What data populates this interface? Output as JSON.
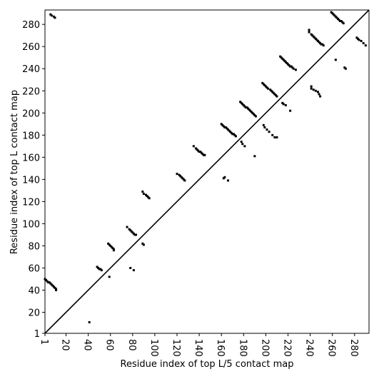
{
  "chart_data": {
    "type": "scatter",
    "xlabel": "Residue index of top L/5 contact map",
    "ylabel": "Residue index of top L contact map",
    "xlim": [
      1,
      293
    ],
    "ylim": [
      1,
      293
    ],
    "xticks": [
      1,
      20,
      40,
      60,
      80,
      100,
      120,
      140,
      160,
      180,
      200,
      220,
      240,
      260,
      280
    ],
    "yticks": [
      1,
      20,
      40,
      60,
      80,
      100,
      120,
      140,
      160,
      180,
      200,
      220,
      240,
      260,
      280
    ],
    "diagonal": true,
    "series": [
      {
        "color": "#000000",
        "x": [
          1,
          2,
          3,
          4,
          5,
          6,
          7,
          8,
          9,
          10,
          11,
          11,
          6,
          7,
          9,
          10,
          48,
          49,
          50,
          51,
          52,
          58,
          59,
          60,
          61,
          62,
          63,
          63,
          75,
          77,
          78,
          79,
          80,
          81,
          82,
          83,
          89,
          90,
          89,
          90,
          92,
          93,
          94,
          95,
          120,
          122,
          123,
          124,
          125,
          126,
          127,
          135,
          137,
          138,
          139,
          140,
          141,
          142,
          143,
          144,
          145,
          160,
          161,
          162,
          163,
          164,
          165,
          166,
          167,
          168,
          169,
          170,
          171,
          172,
          173,
          177,
          178,
          179,
          180,
          181,
          182,
          183,
          184,
          185,
          186,
          187,
          188,
          189,
          190,
          191,
          197,
          198,
          199,
          200,
          201,
          202,
          204,
          205,
          206,
          207,
          208,
          209,
          210,
          213,
          214,
          215,
          216,
          217,
          218,
          219,
          220,
          221,
          222,
          223,
          224,
          225,
          227,
          239,
          239,
          241,
          242,
          243,
          244,
          245,
          246,
          247,
          248,
          249,
          250,
          251,
          252,
          259,
          260,
          261,
          262,
          263,
          264,
          265,
          266,
          267,
          268,
          269,
          270
        ],
        "y": [
          50,
          49,
          48,
          47,
          47,
          46,
          45,
          44,
          43,
          42,
          41,
          40,
          289,
          288,
          287,
          286,
          61,
          60,
          59,
          59,
          58,
          82,
          81,
          80,
          79,
          78,
          77,
          76,
          97,
          95,
          94,
          93,
          92,
          91,
          90,
          90,
          82,
          81,
          129,
          127,
          126,
          125,
          124,
          123,
          145,
          144,
          143,
          142,
          141,
          140,
          139,
          170,
          168,
          167,
          166,
          165,
          165,
          164,
          163,
          162,
          162,
          190,
          189,
          188,
          187,
          187,
          186,
          185,
          184,
          183,
          182,
          181,
          181,
          180,
          179,
          210,
          209,
          208,
          207,
          206,
          205,
          205,
          204,
          203,
          202,
          201,
          200,
          199,
          198,
          197,
          227,
          226,
          225,
          224,
          223,
          222,
          221,
          220,
          219,
          218,
          217,
          216,
          215,
          251,
          250,
          249,
          248,
          247,
          246,
          245,
          244,
          243,
          242,
          242,
          241,
          240,
          239,
          275,
          273,
          271,
          270,
          269,
          268,
          267,
          266,
          265,
          264,
          263,
          262,
          262,
          261,
          291,
          290,
          289,
          288,
          287,
          286,
          285,
          284,
          283,
          283,
          282,
          281
        ]
      },
      {
        "color": "#000000",
        "x": [
          41,
          59,
          78,
          81,
          162,
          163,
          166,
          178,
          179,
          181,
          190,
          198,
          199,
          201,
          203,
          206,
          208,
          210,
          215,
          216,
          218,
          222,
          241,
          241,
          243,
          245,
          247,
          248,
          249,
          263,
          271,
          272,
          282,
          283,
          284,
          286,
          288,
          290
        ],
        "y": [
          11,
          52,
          60,
          58,
          141,
          142,
          139,
          174,
          172,
          170,
          161,
          189,
          187,
          185,
          183,
          180,
          178,
          178,
          209,
          208,
          207,
          202,
          224,
          222,
          221,
          220,
          219,
          217,
          215,
          248,
          241,
          240,
          268,
          267,
          266,
          265,
          263,
          261
        ]
      }
    ]
  }
}
